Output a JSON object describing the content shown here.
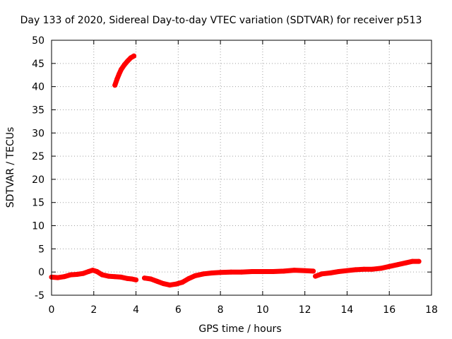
{
  "chart_data": {
    "type": "scatter",
    "title": "Day 133 of 2020, Sidereal Day-to-day VTEC variation (SDTVAR) for receiver p513",
    "xlabel": "GPS time / hours",
    "ylabel": "SDTVAR / TECUs",
    "xlim": [
      0,
      18
    ],
    "ylim": [
      -5,
      50
    ],
    "xticks": [
      0,
      2,
      4,
      6,
      8,
      10,
      12,
      14,
      16,
      18
    ],
    "yticks": [
      -5,
      0,
      5,
      10,
      15,
      20,
      25,
      30,
      35,
      40,
      45,
      50
    ],
    "grid": true,
    "legend": "none",
    "color": "#ff0000",
    "series": [
      {
        "segments": [
          [
            [
              0.0,
              -1.1
            ],
            [
              0.3,
              -1.2
            ],
            [
              0.6,
              -1.0
            ],
            [
              0.9,
              -0.6
            ],
            [
              1.2,
              -0.5
            ],
            [
              1.5,
              -0.3
            ],
            [
              1.75,
              0.1
            ],
            [
              1.95,
              0.4
            ],
            [
              2.15,
              0.1
            ],
            [
              2.4,
              -0.6
            ],
            [
              2.7,
              -0.9
            ],
            [
              3.0,
              -1.0
            ],
            [
              3.3,
              -1.1
            ],
            [
              3.6,
              -1.4
            ],
            [
              3.8,
              -1.5
            ],
            [
              4.0,
              -1.7
            ]
          ],
          [
            [
              3.0,
              40.3
            ],
            [
              3.1,
              41.6
            ],
            [
              3.2,
              42.7
            ],
            [
              3.3,
              43.7
            ],
            [
              3.45,
              44.7
            ],
            [
              3.6,
              45.5
            ],
            [
              3.75,
              46.2
            ],
            [
              3.9,
              46.6
            ]
          ],
          [
            [
              4.4,
              -1.3
            ],
            [
              4.7,
              -1.5
            ],
            [
              5.0,
              -2.0
            ],
            [
              5.3,
              -2.5
            ],
            [
              5.6,
              -2.8
            ],
            [
              5.9,
              -2.6
            ],
            [
              6.2,
              -2.2
            ],
            [
              6.5,
              -1.4
            ],
            [
              6.8,
              -0.8
            ],
            [
              7.2,
              -0.4
            ],
            [
              7.6,
              -0.2
            ],
            [
              8.0,
              -0.1
            ],
            [
              8.5,
              0.0
            ],
            [
              9.0,
              0.0
            ],
            [
              9.5,
              0.1
            ],
            [
              10.0,
              0.1
            ],
            [
              10.5,
              0.1
            ],
            [
              11.0,
              0.2
            ],
            [
              11.5,
              0.4
            ],
            [
              12.0,
              0.3
            ],
            [
              12.4,
              0.2
            ]
          ],
          [
            [
              12.5,
              -0.9
            ],
            [
              12.8,
              -0.4
            ],
            [
              13.2,
              -0.2
            ],
            [
              13.6,
              0.1
            ],
            [
              14.0,
              0.3
            ],
            [
              14.4,
              0.5
            ],
            [
              14.8,
              0.6
            ],
            [
              15.2,
              0.6
            ],
            [
              15.6,
              0.8
            ],
            [
              16.0,
              1.2
            ],
            [
              16.4,
              1.6
            ],
            [
              16.8,
              2.0
            ],
            [
              17.1,
              2.3
            ],
            [
              17.4,
              2.3
            ]
          ]
        ]
      }
    ]
  }
}
